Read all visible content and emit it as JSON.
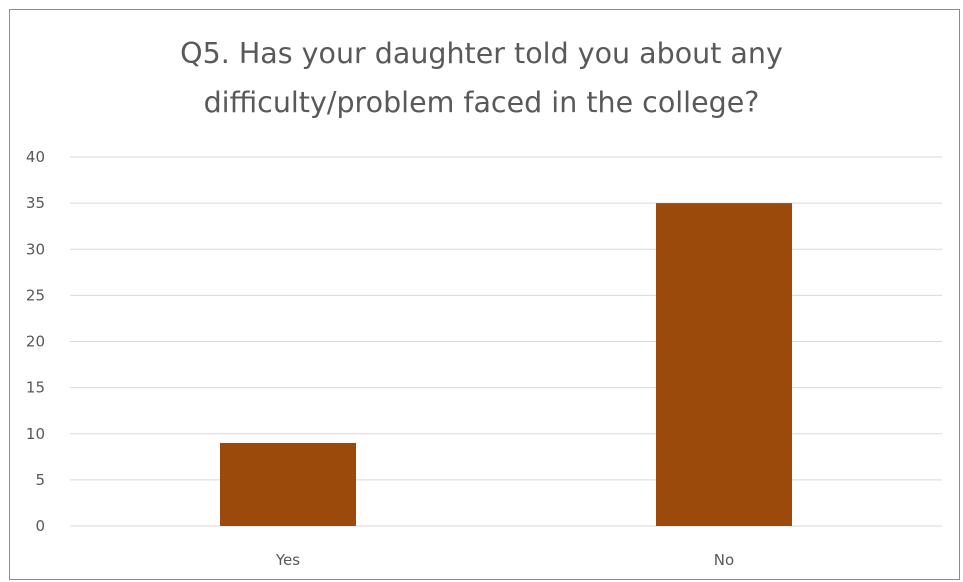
{
  "chart_data": {
    "type": "bar",
    "title_lines": [
      "Q5. Has your daughter told you about any",
      "difficulty/problem  faced in the college?"
    ],
    "categories": [
      "Yes",
      "No"
    ],
    "values": [
      9,
      35
    ],
    "ylim": [
      0,
      40
    ],
    "yticks": [
      0,
      5,
      10,
      15,
      20,
      25,
      30,
      35,
      40
    ],
    "grid": true,
    "legend": "none",
    "bar_color": "#9c4a0c",
    "gridline_color": "#d9d9d9"
  }
}
